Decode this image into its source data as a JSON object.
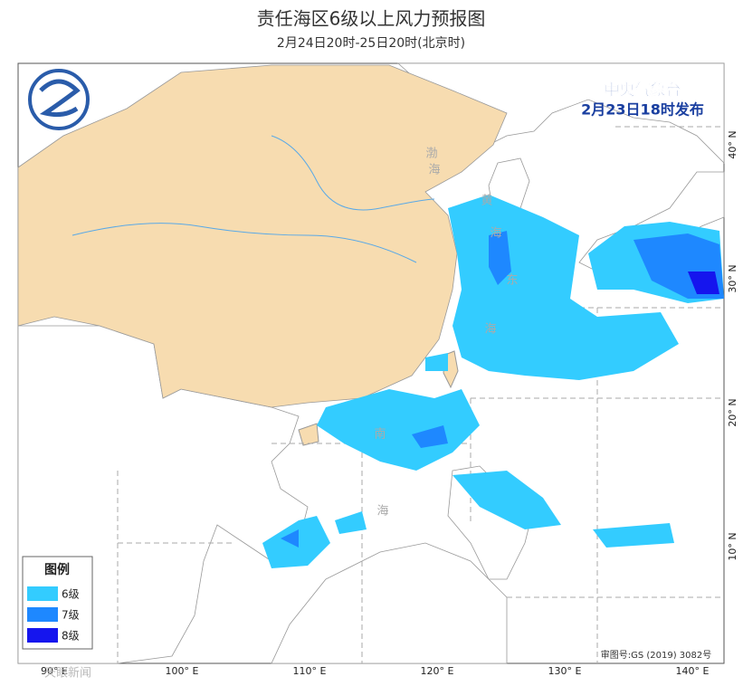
{
  "header": {
    "title": "责任海区6级以上风力预报图",
    "subtitle": "2月24日20时-25日20时(北京时)"
  },
  "issuer": {
    "name": "中央气象台",
    "time": "2月23日18时发布"
  },
  "legend": {
    "title": "图例",
    "items": [
      {
        "label": "6级",
        "color": "#33ccff"
      },
      {
        "label": "7级",
        "color": "#1e88ff"
      },
      {
        "label": "8级",
        "color": "#1515ee"
      }
    ]
  },
  "map": {
    "sea_labels": [
      "渤",
      "海",
      "黄",
      "海",
      "东",
      "海",
      "南",
      "海"
    ],
    "lon_labels": [
      "90° E",
      "100° E",
      "110° E",
      "120° E",
      "130° E",
      "140° E"
    ],
    "lat_labels": [
      "40° N",
      "30° N",
      "20° N",
      "10° N"
    ]
  },
  "footer": {
    "review_number": "审图号:GS (2019) 3082号",
    "watermark": "天眼新闻"
  }
}
